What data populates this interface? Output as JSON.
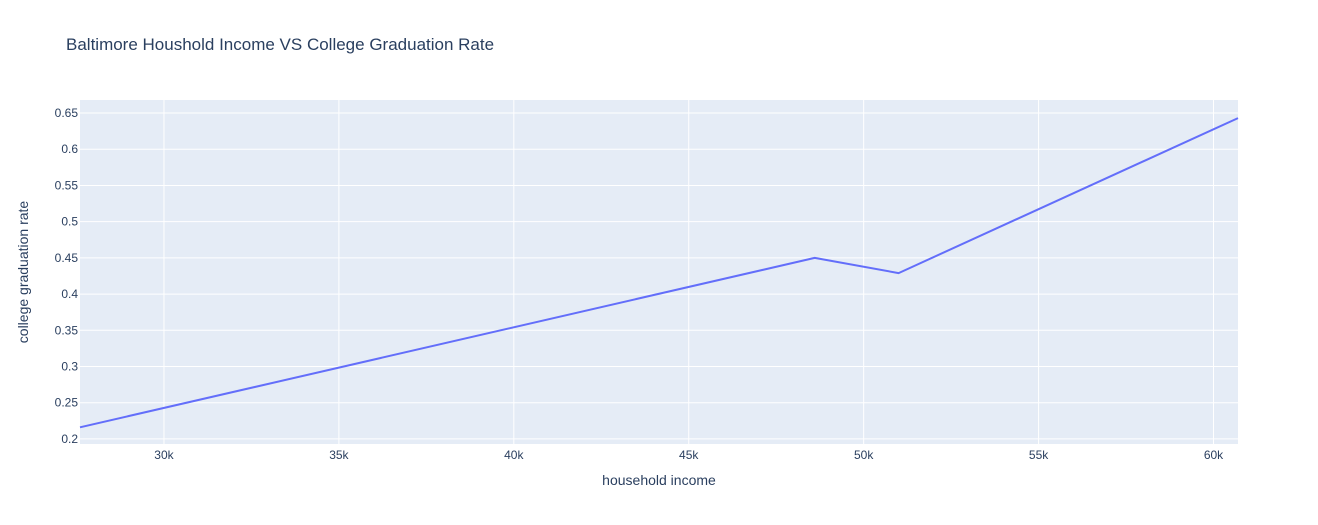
{
  "chart_data": {
    "type": "line",
    "title": "Baltimore Houshold Income VS College Graduation Rate",
    "xlabel": "household income",
    "ylabel": "college graduation rate",
    "xlim": [
      27600,
      60700
    ],
    "ylim": [
      0.193,
      0.668
    ],
    "x_ticks": [
      30000,
      35000,
      40000,
      45000,
      50000,
      55000,
      60000
    ],
    "x_tick_labels": [
      "30k",
      "35k",
      "40k",
      "45k",
      "50k",
      "55k",
      "60k"
    ],
    "y_ticks": [
      0.2,
      0.25,
      0.3,
      0.35,
      0.4,
      0.45,
      0.5,
      0.55,
      0.6,
      0.65
    ],
    "y_tick_labels": [
      "0.2",
      "0.25",
      "0.3",
      "0.35",
      "0.4",
      "0.45",
      "0.5",
      "0.55",
      "0.6",
      "0.65"
    ],
    "grid": true,
    "series": [
      {
        "x": [
          27600,
          48600,
          51000,
          60700
        ],
        "y": [
          0.216,
          0.45,
          0.429,
          0.643
        ]
      }
    ]
  },
  "colors": {
    "plot_bg": "#e5ecf6",
    "grid": "#ffffff",
    "line": "#636efa",
    "text": "#2a3f5f"
  }
}
